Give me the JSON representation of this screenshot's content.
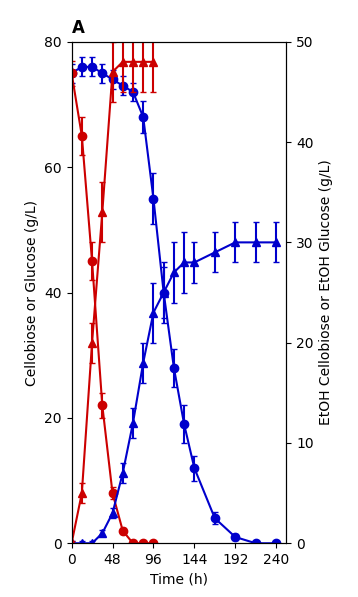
{
  "chart_data": {
    "type": "line",
    "title": "A",
    "x_label": "Time (h)",
    "y_label": "Cellobiose or Glucose (g/L)",
    "y2_label": "EtOH Cellobiose or EtOH Glucose (g/L)",
    "xlim": [
      0,
      252
    ],
    "xticks": [
      0,
      48,
      96,
      144,
      192,
      240
    ],
    "ylim": [
      0,
      80
    ],
    "yticks": [
      0,
      20,
      40,
      60,
      80
    ],
    "y2lim": [
      0,
      50
    ],
    "y2ticks": [
      0,
      10,
      20,
      30,
      40,
      50
    ],
    "grid": false,
    "series": [
      {
        "color": "#0000cc",
        "marker": "circle",
        "line_style": "solid",
        "axis": "y",
        "x": [
          0,
          12,
          24,
          36,
          48,
          60,
          72,
          84,
          96,
          108,
          120,
          132,
          144,
          168,
          192,
          216,
          240
        ],
        "values": [
          75,
          76,
          76,
          75,
          74,
          73,
          72,
          68,
          55,
          40,
          28,
          19,
          12,
          4,
          1,
          0,
          0
        ],
        "yerr": [
          1.5,
          1.5,
          1.5,
          1.5,
          1.5,
          1.5,
          1.5,
          2.5,
          4,
          4,
          3,
          3,
          2,
          1,
          0.5,
          0.3,
          0.2
        ]
      },
      {
        "color": "#0000cc",
        "marker": "triangle",
        "line_style": "solid",
        "axis": "y2",
        "x": [
          0,
          12,
          24,
          36,
          48,
          60,
          72,
          84,
          96,
          108,
          120,
          132,
          144,
          168,
          192,
          216,
          240
        ],
        "values": [
          0,
          0,
          0,
          1,
          3,
          7,
          12,
          18,
          23,
          25,
          27,
          28,
          28,
          29,
          30,
          30,
          30
        ],
        "yerr": [
          0.2,
          0.2,
          0.2,
          0.3,
          0.5,
          1,
          1.5,
          2,
          3,
          3,
          3,
          3,
          2,
          2,
          2,
          2,
          2
        ]
      },
      {
        "color": "#cc0000",
        "marker": "circle",
        "line_style": "solid",
        "axis": "y",
        "x": [
          0,
          12,
          24,
          36,
          48,
          60,
          72,
          84,
          96
        ],
        "values": [
          75,
          65,
          45,
          22,
          8,
          2,
          0,
          0,
          0
        ],
        "yerr": [
          2,
          3,
          3,
          2,
          1,
          0.5,
          0.2,
          0.2,
          0.2
        ]
      },
      {
        "color": "#cc0000",
        "marker": "triangle",
        "line_style": "solid",
        "axis": "y2",
        "x": [
          0,
          12,
          24,
          36,
          48,
          60,
          72,
          84,
          96
        ],
        "values": [
          0,
          5,
          20,
          33,
          47,
          48,
          48,
          48,
          48
        ],
        "yerr": [
          0.2,
          1,
          2,
          3,
          3,
          3,
          3,
          3,
          3
        ]
      }
    ]
  }
}
